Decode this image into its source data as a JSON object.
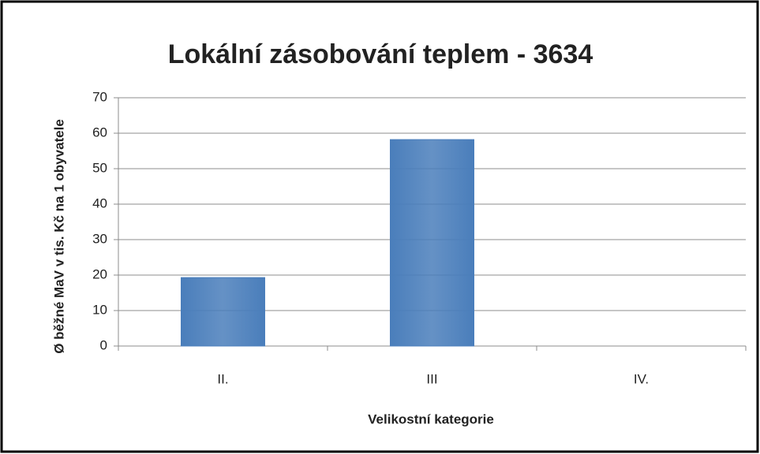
{
  "chart_data": {
    "type": "bar",
    "title": "Lokální zásobování teplem - 3634",
    "x_label": "Velikostní kategorie",
    "y_label": "Ø běžné MaV v tis. Kč na 1 obyvatele",
    "categories": [
      "II.",
      "III",
      "IV."
    ],
    "values": [
      19.3,
      58.2,
      0
    ],
    "color": "#4a7ebb",
    "ylim": [
      0,
      70
    ],
    "yticks": [
      0,
      10,
      20,
      30,
      40,
      50,
      60,
      70
    ],
    "grid": true
  }
}
